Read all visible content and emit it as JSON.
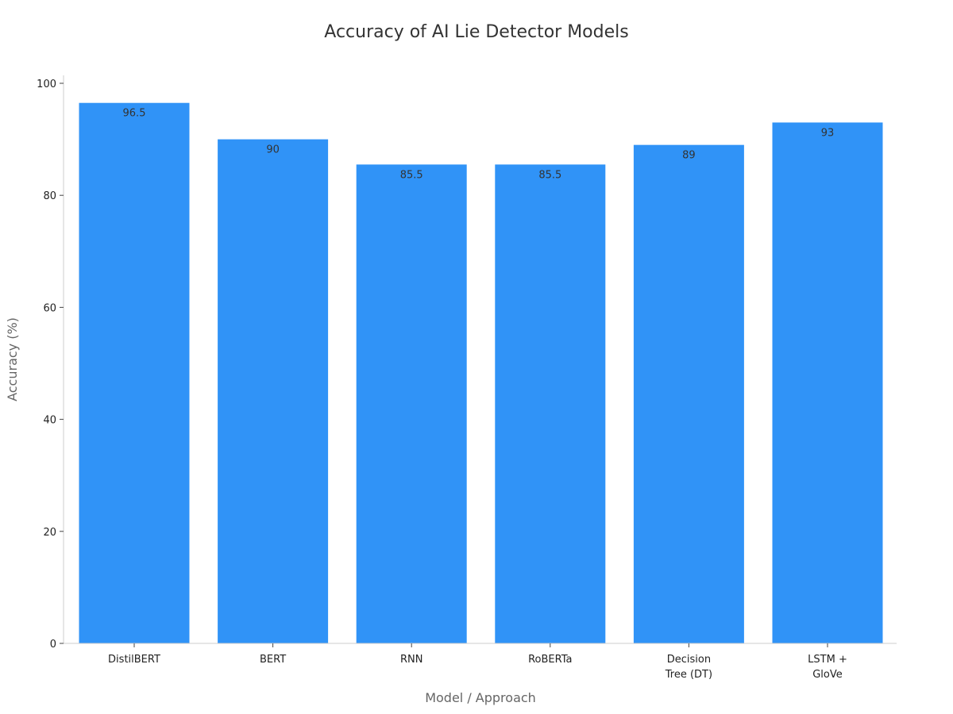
{
  "chart_data": {
    "type": "bar",
    "title": "Accuracy of AI Lie Detector Models",
    "xlabel": "Model / Approach",
    "ylabel": "Accuracy (%)",
    "categories": [
      [
        "DistilBERT"
      ],
      [
        "BERT"
      ],
      [
        "RNN"
      ],
      [
        "RoBERTa"
      ],
      [
        "Decision",
        "Tree (DT)"
      ],
      [
        "LSTM +",
        "GloVe"
      ]
    ],
    "values": [
      96.5,
      90,
      85.5,
      85.5,
      89,
      93
    ],
    "value_labels": [
      "96.5",
      "90",
      "85.5",
      "85.5",
      "89",
      "93"
    ],
    "ylim": [
      0,
      100
    ],
    "yticks": [
      0,
      20,
      40,
      60,
      80,
      100
    ],
    "grid": false,
    "bar_color": "#3093f7"
  }
}
